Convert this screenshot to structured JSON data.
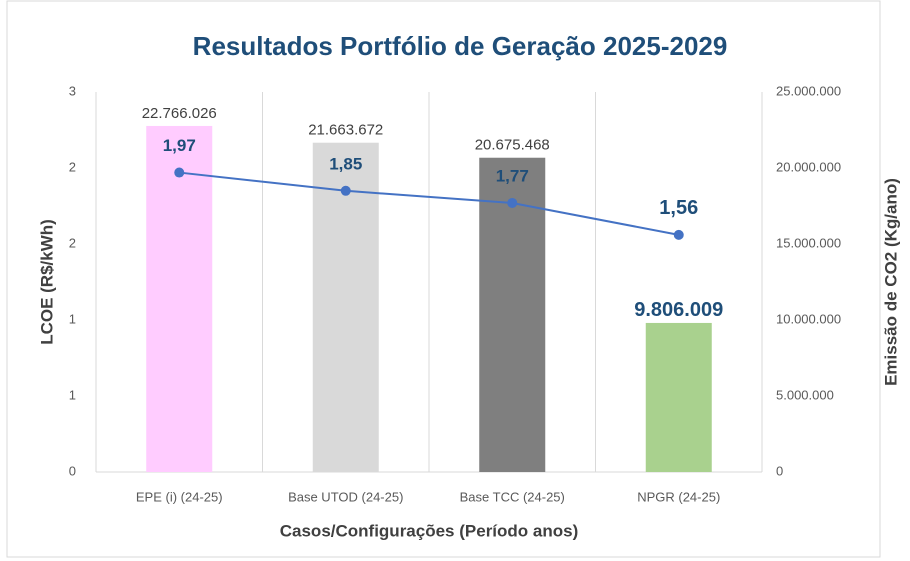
{
  "chart_data": {
    "type": "combo",
    "title": "Resultados Portfólio de Geração 2025-2029",
    "x_label": "Casos/Configurações (Período anos)",
    "y_label": "LCOE (R$/kWh)",
    "y2_label": "Emissão de CO2 (Kg/ano)",
    "categories": [
      "EPE (i) (24-25)",
      "Base UTOD (24-25)",
      "Base TCC (24-25)",
      "NPGR (24-25)"
    ],
    "series": [
      {
        "type": "bar",
        "axis": "y2",
        "colors": [
          "#ffccff",
          "#d9d9d9",
          "#7f7f7f",
          "#a9d18e"
        ],
        "values": [
          22766026,
          21663672,
          20675468,
          9806009
        ],
        "value_labels": [
          "22.766.026",
          "21.663.672",
          "20.675.468",
          "9.806.009"
        ]
      },
      {
        "type": "line",
        "color": "#4472c4",
        "values": [
          1.97,
          1.85,
          1.77,
          1.56
        ],
        "value_labels": [
          "1,97",
          "1,85",
          "1,77",
          "1,56"
        ]
      }
    ],
    "ylim": [
      0,
      2.5
    ],
    "yticks": [
      0,
      {
        "value": 0.5,
        "label": "1"
      },
      1,
      {
        "value": 1.5,
        "label": "2"
      },
      2,
      {
        "value": 2.5,
        "label": "3"
      }
    ],
    "y2lim": [
      0,
      25000000
    ],
    "y2ticks": [
      0,
      {
        "value": 5000000,
        "label": "5.000.000"
      },
      {
        "value": 10000000,
        "label": "10.000.000"
      },
      {
        "value": 15000000,
        "label": "15.000.000"
      },
      {
        "value": 20000000,
        "label": "20.000.000"
      },
      {
        "value": 25000000,
        "label": "25.000.000"
      }
    ]
  }
}
